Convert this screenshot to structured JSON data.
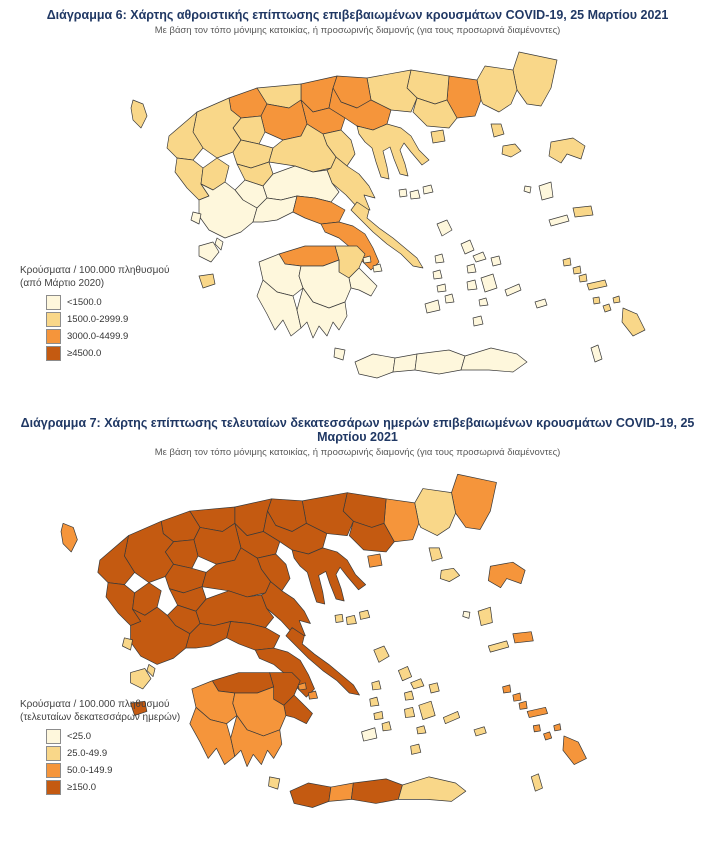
{
  "legend_colors": [
    "#FEF7DC",
    "#F9D789",
    "#F5953B",
    "#C45A11"
  ],
  "map_style": {
    "border_color": "#3a3a3a",
    "sea_color": "#ffffff"
  },
  "figure6": {
    "title": "Διάγραμμα 6: Χάρτης αθροιστικής επίπτωσης επιβεβαιωμένων κρουσμάτων COVID-19, 25 Μαρτίου 2021",
    "subtitle": "Με βάση τον τόπο μόνιμης κατοικίας, ή προσωρινής διαμονής (για τους προσωρινά διαμένοντες)",
    "legend": {
      "title_line1": "Κρούσματα / 100.000 πληθυσμού",
      "title_line2": "(από Μάρτιο 2020)",
      "items": [
        {
          "label": "<1500.0",
          "class": 1
        },
        {
          "label": "1500.0-2999.9",
          "class": 2
        },
        {
          "label": "3000.0-4499.9",
          "class": 3
        },
        {
          "label": "≥4500.0",
          "class": 4
        }
      ]
    }
  },
  "figure7": {
    "title": "Διάγραμμα 7: Χάρτης επίπτωσης τελευταίων δεκατεσσάρων ημερών επιβεβαιωμένων κρουσμάτων COVID-19, 25 Μαρτίου 2021",
    "subtitle": "Με βάση τον τόπο μόνιμης κατοικίας, ή προσωρινής διαμονής (για τους προσωρινά διαμένοντες)",
    "legend": {
      "title_line1": "Κρούσματα / 100.000 πληθυσμού",
      "title_line2": "(τελευταίων δεκατεσσάρων ημερών)",
      "items": [
        {
          "label": "<25.0",
          "class": 1
        },
        {
          "label": "25.0-49.9",
          "class": 2
        },
        {
          "label": "50.0-149.9",
          "class": 3
        },
        {
          "label": "≥150.0",
          "class": 4
        }
      ]
    }
  },
  "chart_data": {
    "type": "choropleth-map-pair",
    "classes_map6": [
      "<1500.0",
      "1500.0-2999.9",
      "3000.0-4499.9",
      "≥4500.0"
    ],
    "classes_map7": [
      "<25.0",
      "25.0-49.9",
      "50.0-149.9",
      "≥150.0"
    ],
    "regions": [
      {
        "id": "evros",
        "name": "Evros",
        "c6": 2,
        "c7": 3
      },
      {
        "id": "rhodope",
        "name": "Rhodope",
        "c6": 2,
        "c7": 2
      },
      {
        "id": "xanthi",
        "name": "Xanthi",
        "c6": 3,
        "c7": 3
      },
      {
        "id": "drama",
        "name": "Drama",
        "c6": 2,
        "c7": 4
      },
      {
        "id": "kavala",
        "name": "Kavala",
        "c6": 2,
        "c7": 4
      },
      {
        "id": "thasos",
        "name": "Thasos",
        "c6": 2,
        "c7": 3
      },
      {
        "id": "serres",
        "name": "Serres",
        "c6": 2,
        "c7": 4
      },
      {
        "id": "kilkis",
        "name": "Kilkis",
        "c6": 3,
        "c7": 4
      },
      {
        "id": "pella",
        "name": "Pella",
        "c6": 3,
        "c7": 4
      },
      {
        "id": "thessaloniki",
        "name": "Thessaloniki",
        "c6": 3,
        "c7": 4
      },
      {
        "id": "chalkidiki",
        "name": "Chalkidiki",
        "c6": 2,
        "c7": 4
      },
      {
        "id": "imathia",
        "name": "Imathia",
        "c6": 3,
        "c7": 4
      },
      {
        "id": "pieria",
        "name": "Pieria",
        "c6": 2,
        "c7": 4
      },
      {
        "id": "florina",
        "name": "Florina",
        "c6": 2,
        "c7": 4
      },
      {
        "id": "kastoria",
        "name": "Kastoria",
        "c6": 3,
        "c7": 4
      },
      {
        "id": "kozani",
        "name": "Kozani",
        "c6": 3,
        "c7": 4
      },
      {
        "id": "grevena",
        "name": "Grevena",
        "c6": 2,
        "c7": 4
      },
      {
        "id": "ioannina",
        "name": "Ioannina",
        "c6": 2,
        "c7": 4
      },
      {
        "id": "thesprotia",
        "name": "Thesprotia",
        "c6": 2,
        "c7": 4
      },
      {
        "id": "preveza",
        "name": "Preveza",
        "c6": 2,
        "c7": 4
      },
      {
        "id": "arta",
        "name": "Arta",
        "c6": 2,
        "c7": 4
      },
      {
        "id": "trikala",
        "name": "Trikala",
        "c6": 2,
        "c7": 4
      },
      {
        "id": "karditsa",
        "name": "Karditsa",
        "c6": 2,
        "c7": 4
      },
      {
        "id": "larissa",
        "name": "Larissa",
        "c6": 2,
        "c7": 4
      },
      {
        "id": "magnesia",
        "name": "Magnesia",
        "c6": 2,
        "c7": 4
      },
      {
        "id": "sporades",
        "name": "Sporades",
        "c6": 1,
        "c7": 2
      },
      {
        "id": "skyros",
        "name": "Skyros",
        "c6": 1,
        "c7": 2
      },
      {
        "id": "phthiotis",
        "name": "Phthiotis",
        "c6": 1,
        "c7": 4
      },
      {
        "id": "evrytania",
        "name": "Evrytania",
        "c6": 1,
        "c7": 4
      },
      {
        "id": "aetolia",
        "name": "Aetolia-Acarnania",
        "c6": 1,
        "c7": 4
      },
      {
        "id": "phocis",
        "name": "Phocis",
        "c6": 1,
        "c7": 4
      },
      {
        "id": "boeotia",
        "name": "Boeotia",
        "c6": 3,
        "c7": 4
      },
      {
        "id": "euboea",
        "name": "Euboea",
        "c6": 2,
        "c7": 4
      },
      {
        "id": "attica",
        "name": "Attica",
        "c6": 3,
        "c7": 4
      },
      {
        "id": "saronic",
        "name": "Saronic Islands",
        "c6": 1,
        "c7": 3
      },
      {
        "id": "corinthia",
        "name": "Corinthia",
        "c6": 2,
        "c7": 4
      },
      {
        "id": "argolis",
        "name": "Argolis",
        "c6": 1,
        "c7": 4
      },
      {
        "id": "achaia",
        "name": "Achaia",
        "c6": 3,
        "c7": 4
      },
      {
        "id": "elis",
        "name": "Elis",
        "c6": 1,
        "c7": 3
      },
      {
        "id": "arcadia",
        "name": "Arcadia",
        "c6": 1,
        "c7": 3
      },
      {
        "id": "messenia",
        "name": "Messenia",
        "c6": 1,
        "c7": 3
      },
      {
        "id": "laconia",
        "name": "Laconia",
        "c6": 1,
        "c7": 3
      },
      {
        "id": "corfu",
        "name": "Corfu",
        "c6": 2,
        "c7": 3
      },
      {
        "id": "lefkada",
        "name": "Lefkada",
        "c6": 1,
        "c7": 2
      },
      {
        "id": "kefalonia",
        "name": "Kefalonia",
        "c6": 1,
        "c7": 2
      },
      {
        "id": "ithaki",
        "name": "Ithaki",
        "c6": 1,
        "c7": 2
      },
      {
        "id": "zakynthos",
        "name": "Zakynthos",
        "c6": 2,
        "c7": 4
      },
      {
        "id": "kythira",
        "name": "Kythira",
        "c6": 1,
        "c7": 2
      },
      {
        "id": "samothraki",
        "name": "Samothraki",
        "c6": 2,
        "c7": 2
      },
      {
        "id": "limnos",
        "name": "Limnos",
        "c6": 2,
        "c7": 2
      },
      {
        "id": "lesbos",
        "name": "Lesbos",
        "c6": 2,
        "c7": 3
      },
      {
        "id": "chios",
        "name": "Chios",
        "c6": 1,
        "c7": 2
      },
      {
        "id": "psara",
        "name": "Psara",
        "c6": 1,
        "c7": 1
      },
      {
        "id": "samos",
        "name": "Samos",
        "c6": 2,
        "c7": 3
      },
      {
        "id": "ikaria",
        "name": "Ikaria",
        "c6": 1,
        "c7": 2
      },
      {
        "id": "cyclades",
        "name": "Cyclades",
        "c6": 1,
        "c7": 2
      },
      {
        "id": "naxos",
        "name": "Naxos",
        "c6": 1,
        "c7": 2
      },
      {
        "id": "milos",
        "name": "Milos",
        "c6": 1,
        "c7": 1
      },
      {
        "id": "santorini",
        "name": "Santorini",
        "c6": 1,
        "c7": 2
      },
      {
        "id": "dodecanese",
        "name": "Dodecanese",
        "c6": 2,
        "c7": 3
      },
      {
        "id": "rhodes",
        "name": "Rhodes",
        "c6": 2,
        "c7": 3
      },
      {
        "id": "karpathos",
        "name": "Karpathos",
        "c6": 1,
        "c7": 2
      },
      {
        "id": "chania",
        "name": "Chania",
        "c6": 1,
        "c7": 4
      },
      {
        "id": "rethymno",
        "name": "Rethymno",
        "c6": 1,
        "c7": 3
      },
      {
        "id": "heraklion",
        "name": "Heraklion",
        "c6": 1,
        "c7": 4
      },
      {
        "id": "lasithi",
        "name": "Lasithi",
        "c6": 1,
        "c7": 2
      }
    ]
  }
}
